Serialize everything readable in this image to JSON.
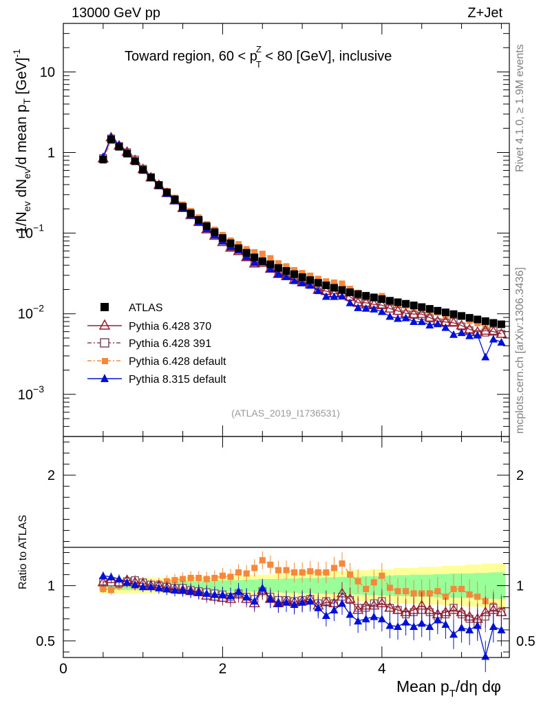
{
  "header": {
    "energy": "13000 GeV pp",
    "process": "Z+Jet",
    "region_pre": "Toward region, 60 < p",
    "region_sup": "Z",
    "region_sub": "T",
    "region_post": " < 80 [GeV], inclusive",
    "analysis_id": "(ATLAS_2019_I1736531)",
    "rivet": "Rivet 4.1.0, ≥ 1.9M events",
    "mcplots": "mcplots.cern.ch [arXiv:1306.3436]"
  },
  "axes": {
    "ylabel": "1/N_ev dN_ev/d mean p_T [GeV]^-1",
    "ratio_ylabel": "Ratio to ATLAS",
    "xlabel": "Mean p_T/dη dφ",
    "main_ticks": [
      "10",
      "1",
      "10",
      "10",
      "10"
    ],
    "main_tick_exps": [
      "",
      "",
      "−1",
      "−2",
      "−3"
    ],
    "ratio_ticks": [
      "2",
      "1",
      "0.5"
    ],
    "x_ticks": [
      "0",
      "2",
      "4"
    ]
  },
  "legend": {
    "atlas": "ATLAS",
    "p370": "Pythia 6.428 370",
    "p391": "Pythia 6.428 391",
    "pdef": "Pythia 6.428 default",
    "p8": "Pythia 8.315 default"
  },
  "colors": {
    "atlas": "#000000",
    "p370": "#9a1c2c",
    "p391": "#7a4a5c",
    "pdef": "#f5883a",
    "p8": "#0010d8",
    "band_inner": "#99ff99",
    "band_outer": "#ffff99"
  },
  "chart_data": {
    "type": "line",
    "title": "Toward region, 60 < pT(Z) < 80 [GeV], inclusive",
    "xlabel": "Mean pT/dη dφ",
    "ylabel": "1/Nev dNev/d mean pT [GeV]^-1",
    "xlim": [
      0,
      5.6
    ],
    "ylim_main": [
      0.0003,
      40
    ],
    "ylim_ratio": [
      0.35,
      2.35
    ],
    "x": [
      0.5,
      0.6,
      0.7,
      0.8,
      0.9,
      1.0,
      1.1,
      1.2,
      1.3,
      1.4,
      1.5,
      1.6,
      1.7,
      1.8,
      1.9,
      2.0,
      2.1,
      2.2,
      2.3,
      2.4,
      2.5,
      2.6,
      2.7,
      2.8,
      2.9,
      3.0,
      3.1,
      3.2,
      3.3,
      3.4,
      3.5,
      3.6,
      3.7,
      3.8,
      3.9,
      4.0,
      4.1,
      4.2,
      4.3,
      4.4,
      4.5,
      4.6,
      4.7,
      4.8,
      4.9,
      5.0,
      5.1,
      5.2,
      5.3,
      5.4,
      5.5
    ],
    "atlas": [
      0.82,
      1.45,
      1.18,
      0.97,
      0.78,
      0.61,
      0.49,
      0.395,
      0.32,
      0.262,
      0.213,
      0.176,
      0.146,
      0.122,
      0.103,
      0.087,
      0.075,
      0.065,
      0.057,
      0.05,
      0.045,
      0.041,
      0.037,
      0.034,
      0.031,
      0.0285,
      0.0262,
      0.0242,
      0.0225,
      0.021,
      0.0197,
      0.0185,
      0.0175,
      0.0167,
      0.0159,
      0.0152,
      0.0145,
      0.0139,
      0.0133,
      0.0127,
      0.0121,
      0.0115,
      0.0109,
      0.0104,
      0.0099,
      0.0094,
      0.0089,
      0.0085,
      0.0081,
      0.0077,
      0.0074
    ],
    "series": [
      {
        "name": "Pythia 6.428 370",
        "key": "p370",
        "ratio": [
          1.03,
          1.06,
          1.03,
          1.05,
          1.03,
          1.02,
          1.0,
          1.0,
          0.98,
          0.97,
          0.96,
          0.95,
          0.94,
          0.91,
          0.9,
          0.89,
          0.88,
          0.92,
          0.88,
          0.84,
          0.96,
          0.88,
          0.84,
          0.86,
          0.85,
          0.86,
          0.88,
          0.82,
          0.85,
          0.84,
          0.93,
          0.88,
          0.78,
          0.82,
          0.82,
          0.84,
          0.8,
          0.78,
          0.76,
          0.78,
          0.82,
          0.78,
          0.74,
          0.76,
          0.78,
          0.76,
          0.72,
          0.7,
          0.76,
          0.78,
          0.76
        ]
      },
      {
        "name": "Pythia 6.428 391",
        "key": "p391",
        "ratio": [
          1.04,
          1.03,
          1.02,
          1.04,
          1.05,
          1.03,
          1.01,
          1.0,
          0.99,
          0.98,
          0.98,
          0.96,
          0.95,
          0.94,
          0.93,
          0.92,
          0.9,
          0.93,
          0.9,
          0.88,
          0.95,
          0.9,
          0.87,
          0.87,
          0.86,
          0.87,
          0.88,
          0.84,
          0.86,
          0.84,
          0.9,
          0.87,
          0.8,
          0.8,
          0.84,
          0.86,
          0.8,
          0.78,
          0.74,
          0.76,
          0.78,
          0.76,
          0.72,
          0.74,
          0.8,
          0.74,
          0.7,
          0.66,
          0.72,
          0.8,
          0.76
        ]
      },
      {
        "name": "Pythia 6.428 default",
        "key": "pdef",
        "ratio": [
          0.97,
          0.96,
          1.0,
          1.02,
          1.0,
          1.0,
          1.0,
          1.02,
          1.04,
          1.05,
          1.06,
          1.07,
          1.07,
          1.06,
          1.07,
          1.09,
          1.08,
          1.12,
          1.11,
          1.16,
          1.23,
          1.19,
          1.14,
          1.14,
          1.12,
          1.12,
          1.13,
          1.12,
          1.12,
          1.16,
          1.2,
          1.1,
          1.04,
          0.97,
          1.03,
          1.09,
          0.98,
          0.95,
          0.95,
          0.93,
          0.93,
          0.93,
          0.95,
          0.9,
          0.97,
          0.97,
          0.92,
          0.9,
          0.86,
          0.82,
          0.78
        ]
      },
      {
        "name": "Pythia 8.315 default",
        "key": "p8",
        "ratio": [
          1.09,
          1.08,
          1.06,
          1.03,
          1.01,
          0.99,
          0.99,
          0.98,
          0.97,
          0.96,
          0.96,
          0.95,
          0.94,
          0.93,
          0.92,
          0.92,
          0.91,
          0.95,
          0.9,
          0.86,
          0.98,
          0.88,
          0.84,
          0.85,
          0.83,
          0.85,
          0.86,
          0.8,
          0.73,
          0.78,
          0.84,
          0.74,
          0.68,
          0.7,
          0.72,
          0.7,
          0.64,
          0.63,
          0.67,
          0.63,
          0.66,
          0.63,
          0.69,
          0.65,
          0.56,
          0.62,
          0.6,
          0.64,
          0.36,
          0.63,
          0.6
        ]
      }
    ],
    "band_inner_half": [
      0.04,
      0.04,
      0.04,
      0.04,
      0.04,
      0.04,
      0.04,
      0.04,
      0.04,
      0.04,
      0.045,
      0.045,
      0.045,
      0.045,
      0.05,
      0.05,
      0.05,
      0.05,
      0.055,
      0.055,
      0.06,
      0.06,
      0.06,
      0.065,
      0.065,
      0.07,
      0.07,
      0.07,
      0.075,
      0.075,
      0.08,
      0.08,
      0.08,
      0.085,
      0.085,
      0.09,
      0.09,
      0.095,
      0.095,
      0.1,
      0.1,
      0.1,
      0.105,
      0.105,
      0.11,
      0.11,
      0.11,
      0.115,
      0.115,
      0.12,
      0.12
    ],
    "band_outer_half": [
      0.07,
      0.07,
      0.07,
      0.07,
      0.07,
      0.07,
      0.07,
      0.07,
      0.07,
      0.075,
      0.075,
      0.08,
      0.08,
      0.08,
      0.085,
      0.085,
      0.09,
      0.09,
      0.09,
      0.1,
      0.1,
      0.1,
      0.11,
      0.11,
      0.11,
      0.12,
      0.12,
      0.12,
      0.13,
      0.13,
      0.13,
      0.14,
      0.14,
      0.14,
      0.15,
      0.15,
      0.15,
      0.16,
      0.16,
      0.16,
      0.17,
      0.17,
      0.17,
      0.18,
      0.18,
      0.18,
      0.19,
      0.19,
      0.2,
      0.2,
      0.2
    ]
  }
}
